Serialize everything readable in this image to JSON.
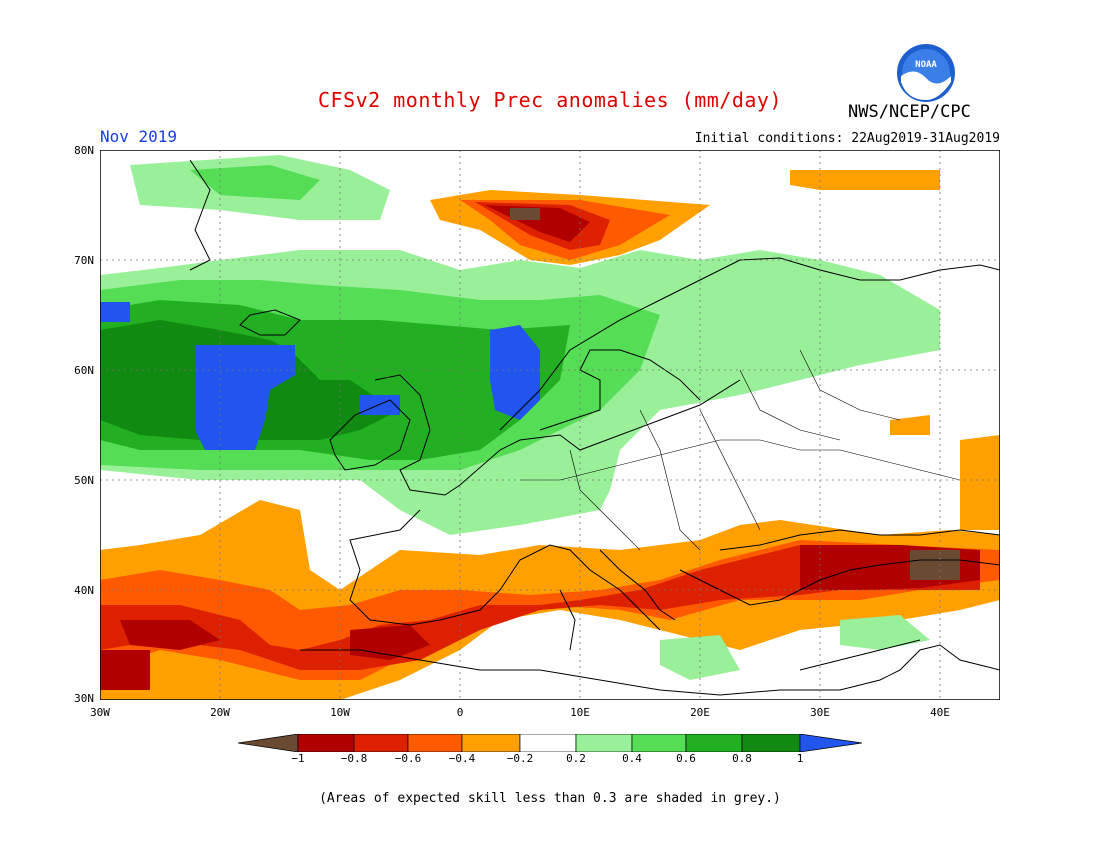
{
  "title": "CFSv2 monthly Prec anomalies (mm/day)",
  "agency": "NWS/NCEP/CPC",
  "logo_text": "NOAA",
  "month": "Nov 2019",
  "initial_conditions": "Initial conditions: 22Aug2019-31Aug2019",
  "footnote": "(Areas of expected skill less than 0.3 are shaded in grey.)",
  "lat_labels": [
    "80N",
    "70N",
    "60N",
    "50N",
    "40N",
    "30N"
  ],
  "lon_labels": [
    "30W",
    "20W",
    "10W",
    "0",
    "10E",
    "20E",
    "30E",
    "40E"
  ],
  "colorbar": {
    "labels": [
      "−1",
      "−0.8",
      "−0.6",
      "−0.4",
      "−0.2",
      "0.2",
      "0.4",
      "0.6",
      "0.8",
      "1"
    ],
    "colors": [
      "#6b4a33",
      "#b00000",
      "#dd2000",
      "#ff5a00",
      "#ffa000",
      "#ffffff",
      "#99f099",
      "#55dd55",
      "#22b022",
      "#118a11",
      "#2255ee"
    ]
  },
  "colors": {
    "title": "#e00000",
    "month": "#1a3fe0"
  }
}
